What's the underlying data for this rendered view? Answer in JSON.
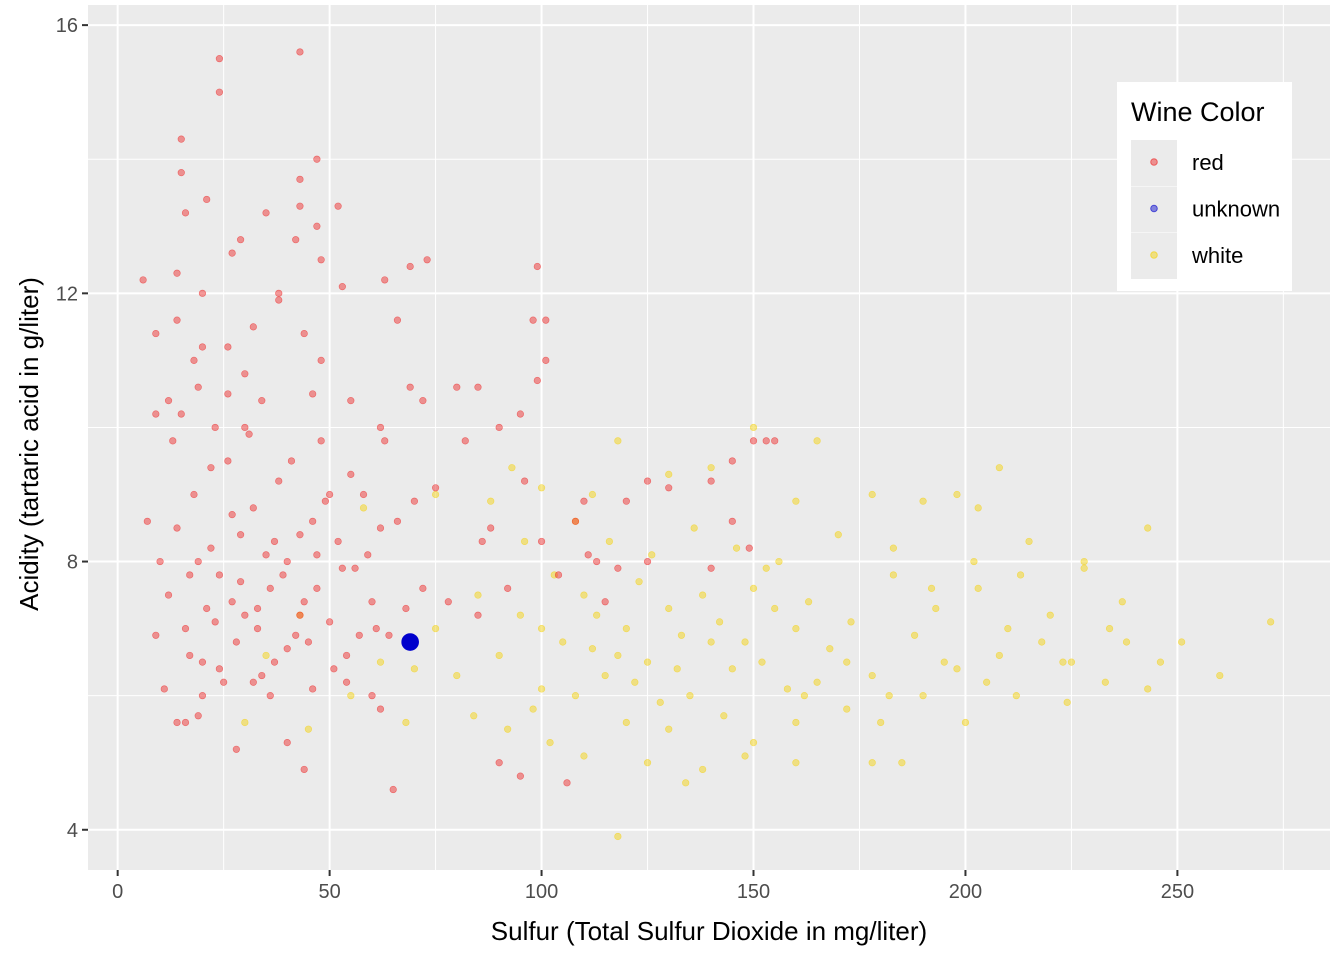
{
  "chart_data": {
    "type": "scatter",
    "title": "",
    "xlabel": "Sulfur (Total Sulfur Dioxide  in mg/liter)",
    "ylabel": "Acidity (tartaric acid in g/liter)",
    "xlim": [
      -7,
      286
    ],
    "ylim": [
      3.4,
      16.3
    ],
    "xticks": [
      0,
      50,
      100,
      150,
      200,
      250
    ],
    "yticks": [
      4,
      8,
      12,
      16
    ],
    "grid": true,
    "legend": {
      "title": "Wine Color",
      "position": "right-inside-top"
    },
    "series": [
      {
        "name": "red",
        "color": "#ee2020",
        "points": [
          [
            24,
            15.5
          ],
          [
            43,
            15.6
          ],
          [
            24,
            15.0
          ],
          [
            15,
            14.3
          ],
          [
            47,
            14.0
          ],
          [
            15,
            13.8
          ],
          [
            43,
            13.7
          ],
          [
            21,
            13.4
          ],
          [
            16,
            13.2
          ],
          [
            35,
            13.2
          ],
          [
            43,
            13.3
          ],
          [
            52,
            13.3
          ],
          [
            29,
            12.8
          ],
          [
            42,
            12.8
          ],
          [
            47,
            13.0
          ],
          [
            6,
            12.2
          ],
          [
            14,
            12.3
          ],
          [
            27,
            12.6
          ],
          [
            48,
            12.5
          ],
          [
            69,
            12.4
          ],
          [
            73,
            12.5
          ],
          [
            99,
            12.4
          ],
          [
            9,
            11.4
          ],
          [
            20,
            12.0
          ],
          [
            38,
            12.0
          ],
          [
            53,
            12.1
          ],
          [
            63,
            12.2
          ],
          [
            98,
            11.6
          ],
          [
            101,
            11.6
          ],
          [
            66,
            11.6
          ],
          [
            20,
            11.2
          ],
          [
            32,
            11.5
          ],
          [
            48,
            11.0
          ],
          [
            101,
            11.0
          ],
          [
            99,
            10.7
          ],
          [
            19,
            10.6
          ],
          [
            26,
            10.5
          ],
          [
            46,
            10.5
          ],
          [
            69,
            10.6
          ],
          [
            80,
            10.6
          ],
          [
            85,
            10.6
          ],
          [
            72,
            10.4
          ],
          [
            55,
            10.4
          ],
          [
            9,
            10.2
          ],
          [
            30,
            10.0
          ],
          [
            62,
            10.0
          ],
          [
            95,
            10.2
          ],
          [
            90,
            10.0
          ],
          [
            150,
            9.8
          ],
          [
            153,
            9.8
          ],
          [
            155,
            9.8
          ],
          [
            125,
            9.2
          ],
          [
            145,
            9.5
          ],
          [
            140,
            9.2
          ],
          [
            130,
            9.1
          ],
          [
            120,
            8.9
          ],
          [
            110,
            8.9
          ],
          [
            86,
            8.3
          ],
          [
            100,
            8.3
          ],
          [
            145,
            8.6
          ],
          [
            149,
            8.2
          ],
          [
            111,
            8.1
          ],
          [
            113,
            8.0
          ],
          [
            125,
            8.0
          ],
          [
            140,
            7.9
          ],
          [
            60,
            6.0
          ],
          [
            62,
            5.8
          ],
          [
            44,
            4.9
          ],
          [
            65,
            4.6
          ],
          [
            95,
            4.8
          ],
          [
            106,
            4.7
          ],
          [
            90,
            5.0
          ],
          [
            40,
            5.3
          ],
          [
            28,
            5.2
          ],
          [
            14,
            5.6
          ],
          [
            16,
            5.6
          ],
          [
            19,
            5.7
          ],
          [
            10,
            8.0
          ],
          [
            12,
            7.5
          ],
          [
            14,
            8.5
          ],
          [
            16,
            7.0
          ],
          [
            18,
            9.0
          ],
          [
            20,
            6.5
          ],
          [
            22,
            8.2
          ],
          [
            24,
            7.8
          ],
          [
            26,
            9.5
          ],
          [
            28,
            6.8
          ],
          [
            30,
            7.2
          ],
          [
            32,
            8.8
          ],
          [
            34,
            6.3
          ],
          [
            36,
            7.6
          ],
          [
            38,
            9.2
          ],
          [
            40,
            8.0
          ],
          [
            42,
            6.9
          ],
          [
            44,
            7.4
          ],
          [
            46,
            8.6
          ],
          [
            48,
            9.8
          ],
          [
            50,
            7.1
          ],
          [
            52,
            8.3
          ],
          [
            54,
            6.6
          ],
          [
            56,
            7.9
          ],
          [
            58,
            9.0
          ],
          [
            60,
            7.4
          ],
          [
            62,
            8.5
          ],
          [
            64,
            6.9
          ],
          [
            11,
            6.1
          ],
          [
            13,
            9.8
          ],
          [
            15,
            10.2
          ],
          [
            17,
            6.6
          ],
          [
            19,
            8.0
          ],
          [
            21,
            7.3
          ],
          [
            23,
            10.0
          ],
          [
            25,
            6.2
          ],
          [
            27,
            8.7
          ],
          [
            29,
            7.7
          ],
          [
            31,
            9.9
          ],
          [
            33,
            7.0
          ],
          [
            35,
            8.1
          ],
          [
            37,
            6.5
          ],
          [
            39,
            7.8
          ],
          [
            41,
            9.5
          ],
          [
            43,
            8.4
          ],
          [
            45,
            6.8
          ],
          [
            47,
            7.6
          ],
          [
            49,
            8.9
          ],
          [
            51,
            6.4
          ],
          [
            53,
            7.9
          ],
          [
            55,
            9.3
          ],
          [
            57,
            6.9
          ],
          [
            59,
            8.1
          ],
          [
            61,
            7.0
          ],
          [
            63,
            9.8
          ],
          [
            66,
            8.6
          ],
          [
            68,
            7.3
          ],
          [
            70,
            8.9
          ],
          [
            72,
            7.6
          ],
          [
            75,
            9.1
          ],
          [
            78,
            7.4
          ],
          [
            82,
            9.8
          ],
          [
            85,
            7.2
          ],
          [
            88,
            8.5
          ],
          [
            92,
            7.6
          ],
          [
            96,
            9.2
          ],
          [
            104,
            7.8
          ],
          [
            108,
            8.6
          ],
          [
            115,
            7.4
          ],
          [
            118,
            7.9
          ],
          [
            7,
            8.6
          ],
          [
            9,
            6.9
          ],
          [
            12,
            10.4
          ],
          [
            14,
            11.6
          ],
          [
            18,
            11.0
          ],
          [
            22,
            9.4
          ],
          [
            26,
            11.2
          ],
          [
            30,
            10.8
          ],
          [
            34,
            10.4
          ],
          [
            38,
            11.9
          ],
          [
            44,
            11.4
          ],
          [
            50,
            9.0
          ],
          [
            20,
            6.0
          ],
          [
            24,
            6.4
          ],
          [
            32,
            6.2
          ],
          [
            36,
            6.0
          ],
          [
            40,
            6.7
          ],
          [
            46,
            6.1
          ],
          [
            54,
            6.2
          ],
          [
            17,
            7.8
          ],
          [
            23,
            7.1
          ],
          [
            27,
            7.4
          ],
          [
            33,
            7.3
          ],
          [
            43,
            7.2
          ],
          [
            29,
            8.4
          ],
          [
            37,
            8.3
          ],
          [
            47,
            8.1
          ]
        ]
      },
      {
        "name": "unknown",
        "color": "#0000cc",
        "points": [
          [
            69,
            6.8
          ]
        ]
      },
      {
        "name": "white",
        "color": "#f5d000",
        "points": [
          [
            118,
            3.9
          ],
          [
            134,
            4.7
          ],
          [
            118,
            9.8
          ],
          [
            150,
            10.0
          ],
          [
            165,
            9.8
          ],
          [
            208,
            9.4
          ],
          [
            243,
            8.5
          ],
          [
            228,
            8.0
          ],
          [
            272,
            7.1
          ],
          [
            260,
            6.3
          ],
          [
            251,
            6.8
          ],
          [
            243,
            6.1
          ],
          [
            237,
            7.4
          ],
          [
            234,
            7.0
          ],
          [
            233,
            6.2
          ],
          [
            224,
            5.9
          ],
          [
            200,
            5.6
          ],
          [
            185,
            5.0
          ],
          [
            178,
            5.0
          ],
          [
            160,
            5.0
          ],
          [
            148,
            5.1
          ],
          [
            138,
            4.9
          ],
          [
            125,
            5.0
          ],
          [
            110,
            5.1
          ],
          [
            102,
            5.3
          ],
          [
            84,
            5.7
          ],
          [
            68,
            5.6
          ],
          [
            55,
            6.0
          ],
          [
            45,
            5.5
          ],
          [
            30,
            5.6
          ],
          [
            35,
            6.6
          ],
          [
            43,
            7.2
          ],
          [
            58,
            8.8
          ],
          [
            75,
            9.0
          ],
          [
            93,
            9.4
          ],
          [
            108,
            8.6
          ],
          [
            130,
            9.3
          ],
          [
            140,
            9.4
          ],
          [
            160,
            8.9
          ],
          [
            178,
            9.0
          ],
          [
            190,
            8.9
          ],
          [
            198,
            9.0
          ],
          [
            203,
            8.8
          ],
          [
            215,
            8.3
          ],
          [
            220,
            7.2
          ],
          [
            210,
            7.0
          ],
          [
            205,
            6.2
          ],
          [
            195,
            6.5
          ],
          [
            190,
            6.0
          ],
          [
            180,
            5.6
          ],
          [
            172,
            5.8
          ],
          [
            165,
            6.2
          ],
          [
            160,
            7.0
          ],
          [
            155,
            7.3
          ],
          [
            150,
            7.6
          ],
          [
            145,
            6.4
          ],
          [
            140,
            6.8
          ],
          [
            135,
            6.0
          ],
          [
            130,
            7.3
          ],
          [
            125,
            6.5
          ],
          [
            120,
            7.0
          ],
          [
            115,
            6.3
          ],
          [
            110,
            7.5
          ],
          [
            105,
            6.8
          ],
          [
            100,
            6.1
          ],
          [
            95,
            7.2
          ],
          [
            90,
            6.6
          ],
          [
            85,
            7.5
          ],
          [
            80,
            6.3
          ],
          [
            75,
            7.0
          ],
          [
            70,
            6.4
          ],
          [
            62,
            6.5
          ],
          [
            98,
            5.8
          ],
          [
            103,
            7.8
          ],
          [
            108,
            6.0
          ],
          [
            113,
            7.2
          ],
          [
            118,
            6.6
          ],
          [
            123,
            7.7
          ],
          [
            128,
            5.9
          ],
          [
            133,
            6.9
          ],
          [
            138,
            7.5
          ],
          [
            143,
            5.7
          ],
          [
            148,
            6.8
          ],
          [
            153,
            7.9
          ],
          [
            158,
            6.1
          ],
          [
            163,
            7.4
          ],
          [
            168,
            6.7
          ],
          [
            173,
            7.1
          ],
          [
            178,
            6.3
          ],
          [
            183,
            7.8
          ],
          [
            188,
            6.9
          ],
          [
            193,
            7.3
          ],
          [
            198,
            6.4
          ],
          [
            203,
            7.6
          ],
          [
            208,
            6.6
          ],
          [
            213,
            7.8
          ],
          [
            218,
            6.8
          ],
          [
            223,
            6.5
          ],
          [
            228,
            7.9
          ],
          [
            238,
            6.8
          ],
          [
            246,
            6.5
          ],
          [
            183,
            8.2
          ],
          [
            170,
            8.4
          ],
          [
            156,
            8.0
          ],
          [
            146,
            8.2
          ],
          [
            136,
            8.5
          ],
          [
            126,
            8.1
          ],
          [
            116,
            8.3
          ],
          [
            96,
            8.3
          ],
          [
            88,
            8.9
          ],
          [
            160,
            5.6
          ],
          [
            150,
            5.3
          ],
          [
            130,
            5.5
          ],
          [
            120,
            5.6
          ],
          [
            92,
            5.5
          ],
          [
            100,
            7.0
          ],
          [
            112,
            6.7
          ],
          [
            122,
            6.2
          ],
          [
            132,
            6.4
          ],
          [
            142,
            7.1
          ],
          [
            152,
            6.5
          ],
          [
            162,
            6.0
          ],
          [
            172,
            6.5
          ],
          [
            182,
            6.0
          ],
          [
            192,
            7.6
          ],
          [
            202,
            8.0
          ],
          [
            212,
            6.0
          ],
          [
            225,
            6.5
          ],
          [
            100,
            9.1
          ],
          [
            112,
            9.0
          ]
        ]
      }
    ]
  }
}
